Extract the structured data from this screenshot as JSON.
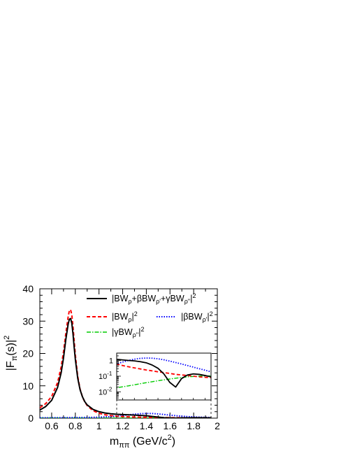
{
  "chart_data": [
    {
      "type": "line",
      "xlabel": {
        "base": "m",
        "sub": "ππ",
        "unit_pre": " (GeV/c",
        "unit_sup": "2",
        "unit_post": ")"
      },
      "ylabel": {
        "pre": "|F",
        "sub": "π",
        "mid": "(s)|",
        "sup": "2"
      },
      "xlim": [
        0.5,
        2.0
      ],
      "ylim": [
        0,
        40
      ],
      "xticks": [
        "0.6",
        "0.8",
        "1",
        "1.2",
        "1.4",
        "1.6",
        "1.8",
        "2"
      ],
      "yticks": [
        "0",
        "10",
        "20",
        "30",
        "40"
      ],
      "legend_placement": "top-right",
      "legend": [
        {
          "series": "total",
          "label": "|BW_ρ+βBW_ρ'+γBW_ρ''|^2"
        },
        {
          "series": "bw_rho",
          "label": "|BW_ρ|^2"
        },
        {
          "series": "beta_bw",
          "label": "|βBW_ρ'|^2"
        },
        {
          "series": "gamma_bw",
          "label": "|γBW_ρ''|^2"
        }
      ],
      "series": [
        {
          "id": "total",
          "color": "#000000",
          "style": "solid",
          "x": [
            0.5,
            0.55,
            0.6,
            0.65,
            0.68,
            0.7,
            0.72,
            0.74,
            0.75,
            0.76,
            0.77,
            0.78,
            0.79,
            0.8,
            0.82,
            0.84,
            0.86,
            0.88,
            0.9,
            0.95,
            1.0,
            1.05,
            1.1,
            1.15,
            1.2,
            1.25,
            1.3,
            1.35,
            1.4,
            1.45,
            1.5,
            1.55,
            1.6,
            1.65,
            1.7,
            1.75,
            1.8,
            1.85,
            1.9,
            1.95
          ],
          "y": [
            2.5,
            3.6,
            5.5,
            9.5,
            14.0,
            18.6,
            24.4,
            29.2,
            30.6,
            30.8,
            29.4,
            26.2,
            22.0,
            18.2,
            12.4,
            8.8,
            6.6,
            5.1,
            4.1,
            2.7,
            2.0,
            1.6,
            1.35,
            1.2,
            1.1,
            1.02,
            0.95,
            0.85,
            0.72,
            0.52,
            0.32,
            0.14,
            0.04,
            0.02,
            0.07,
            0.12,
            0.14,
            0.13,
            0.11,
            0.09
          ]
        },
        {
          "id": "bw_rho",
          "color": "#ff0000",
          "style": "dashed",
          "x": [
            0.5,
            0.55,
            0.6,
            0.65,
            0.68,
            0.7,
            0.72,
            0.74,
            0.75,
            0.76,
            0.77,
            0.78,
            0.79,
            0.8,
            0.82,
            0.84,
            0.86,
            0.88,
            0.9,
            0.95,
            1.0,
            1.05,
            1.1,
            1.15,
            1.2,
            1.25,
            1.3,
            1.35,
            1.4,
            1.45,
            1.5,
            1.55,
            1.6,
            1.65,
            1.7,
            1.75,
            1.8,
            1.85,
            1.9,
            1.95
          ],
          "y": [
            3.2,
            4.5,
            6.7,
            11.0,
            15.8,
            20.5,
            26.3,
            31.5,
            33.3,
            33.5,
            32.0,
            28.5,
            24.0,
            19.6,
            13.0,
            9.0,
            6.6,
            5.0,
            3.9,
            2.3,
            1.5,
            1.05,
            0.78,
            0.6,
            0.48,
            0.4,
            0.34,
            0.29,
            0.25,
            0.22,
            0.19,
            0.17,
            0.15,
            0.13,
            0.12,
            0.11,
            0.1,
            0.09,
            0.085,
            0.08
          ]
        },
        {
          "id": "beta_bw",
          "color": "#0000ff",
          "style": "dotted",
          "x": [
            0.5,
            0.6,
            0.7,
            0.8,
            0.9,
            1.0,
            1.1,
            1.15,
            1.2,
            1.25,
            1.3,
            1.35,
            1.4,
            1.45,
            1.5,
            1.55,
            1.6,
            1.65,
            1.7,
            1.75,
            1.8,
            1.85,
            1.9,
            1.95
          ],
          "y": [
            0.1,
            0.12,
            0.15,
            0.18,
            0.22,
            0.3,
            0.48,
            0.62,
            0.8,
            1.02,
            1.22,
            1.38,
            1.45,
            1.42,
            1.3,
            1.12,
            0.92,
            0.75,
            0.6,
            0.48,
            0.38,
            0.3,
            0.24,
            0.19
          ]
        },
        {
          "id": "gamma_bw",
          "color": "#00cc00",
          "style": "dashdot",
          "x": [
            0.5,
            0.6,
            0.7,
            0.8,
            0.9,
            1.0,
            1.1,
            1.15,
            1.2,
            1.25,
            1.3,
            1.35,
            1.4,
            1.45,
            1.5,
            1.55,
            1.6,
            1.65,
            1.7,
            1.75,
            1.8,
            1.85,
            1.9,
            1.95
          ],
          "y": [
            0.004,
            0.005,
            0.006,
            0.008,
            0.01,
            0.013,
            0.016,
            0.018,
            0.021,
            0.024,
            0.028,
            0.033,
            0.038,
            0.044,
            0.051,
            0.058,
            0.066,
            0.074,
            0.082,
            0.09,
            0.096,
            0.1,
            0.103,
            0.105
          ]
        }
      ]
    },
    {
      "type": "line",
      "scale": "log",
      "xlim": [
        1.15,
        1.95
      ],
      "ylim": [
        0.003,
        3
      ],
      "yticks": [
        {
          "base": "1",
          "exp": ""
        },
        {
          "base": "10",
          "exp": "-1"
        },
        {
          "base": "10",
          "exp": "-2"
        }
      ],
      "series_ref": [
        "total",
        "bw_rho",
        "beta_bw",
        "gamma_bw"
      ]
    }
  ]
}
